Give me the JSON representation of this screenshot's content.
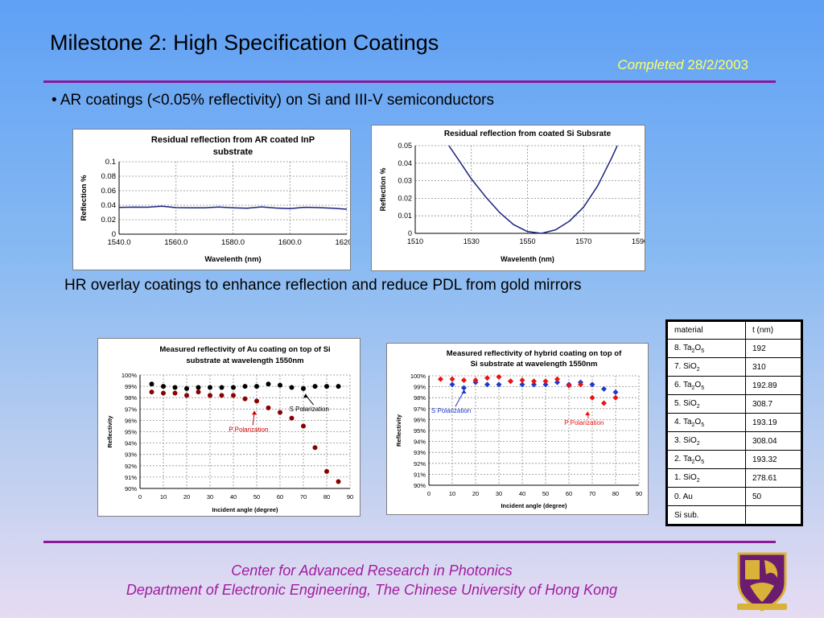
{
  "slide": {
    "title": "Milestone 2: High Specification Coatings",
    "status_word": "Completed",
    "status_date": "28/2/2003",
    "bullet1": "• AR coatings (<0.05% reflectivity) on Si and III-V semiconductors",
    "caption2": "HR overlay coatings to enhance reflection and reduce PDL from gold mirrors",
    "footer_line1": "Center for Advanced Research in Photonics",
    "footer_line2": "Department of Electronic Engineering, The Chinese University of Hong Kong"
  },
  "table": {
    "headers": [
      "material",
      "t (nm)"
    ],
    "rows": [
      {
        "base": "8. Ta",
        "sub": "2",
        "mid": "O",
        "sub2": "5",
        "t": "192"
      },
      {
        "base": "7. SiO",
        "sub": "2",
        "mid": "",
        "sub2": "",
        "t": "310"
      },
      {
        "base": "6. Ta",
        "sub": "2",
        "mid": "O",
        "sub2": "5",
        "t": "192.89"
      },
      {
        "base": "5. SiO",
        "sub": "2",
        "mid": "",
        "sub2": "",
        "t": "308.7"
      },
      {
        "base": "4. Ta",
        "sub": "2",
        "mid": "O",
        "sub2": "5",
        "t": "193.19"
      },
      {
        "base": "3. SiO",
        "sub": "2",
        "mid": "",
        "sub2": "",
        "t": "308.04"
      },
      {
        "base": "2. Ta",
        "sub": "2",
        "mid": "O",
        "sub2": "5",
        "t": "193.32"
      },
      {
        "base": "1. SiO",
        "sub": "2",
        "mid": "",
        "sub2": "",
        "t": "278.61"
      },
      {
        "base": "0. Au",
        "sub": "",
        "mid": "",
        "sub2": "",
        "t": "50"
      },
      {
        "base": "Si sub.",
        "sub": "",
        "mid": "",
        "sub2": "",
        "t": ""
      }
    ]
  },
  "chart_data": [
    {
      "type": "line",
      "title": "Residual reflection from AR coated InP substrate",
      "title_lines": [
        "Residual reflection from AR coated InP",
        "substrate"
      ],
      "xlabel": "Wavelenth (nm)",
      "ylabel": "Reflection %",
      "xlim": [
        1540,
        1620
      ],
      "ylim": [
        0,
        0.1
      ],
      "xticks": [
        "1540.0",
        "1560.0",
        "1580.0",
        "1600.0",
        "1620.0"
      ],
      "yticks": [
        "0",
        "0.02",
        "0.04",
        "0.06",
        "0.08",
        "0.1"
      ],
      "grid": true,
      "series": [
        {
          "color": "#1a237e",
          "x": [
            1540,
            1545,
            1550,
            1555,
            1560,
            1565,
            1570,
            1575,
            1580,
            1585,
            1590,
            1595,
            1600,
            1605,
            1610,
            1615,
            1620
          ],
          "y": [
            0.037,
            0.038,
            0.037,
            0.038,
            0.037,
            0.037,
            0.036,
            0.037,
            0.037,
            0.036,
            0.037,
            0.036,
            0.036,
            0.037,
            0.036,
            0.036,
            0.035
          ]
        }
      ]
    },
    {
      "type": "line",
      "title": "Residual reflection from coated Si Subsrate",
      "title_lines": [
        "Residual reflection from coated Si Subsrate"
      ],
      "xlabel": "Wavelenth (nm)",
      "ylabel": "Reflection %",
      "xlim": [
        1510,
        1590
      ],
      "ylim": [
        0,
        0.05
      ],
      "xticks": [
        "1510",
        "1530",
        "1550",
        "1570",
        "1590"
      ],
      "yticks": [
        "0",
        "0.01",
        "0.02",
        "0.03",
        "0.04",
        "0.05"
      ],
      "grid": true,
      "series": [
        {
          "color": "#1a237e",
          "x": [
            1522,
            1525,
            1530,
            1535,
            1540,
            1545,
            1550,
            1555,
            1560,
            1565,
            1570,
            1575,
            1580,
            1582
          ],
          "y": [
            0.05,
            0.043,
            0.031,
            0.021,
            0.012,
            0.005,
            0.001,
            0.0,
            0.002,
            0.007,
            0.015,
            0.027,
            0.043,
            0.05
          ]
        }
      ]
    },
    {
      "type": "scatter",
      "title": "Measured reflectivity of Au coating on top of Si substrate at wavelength 1550nm",
      "title_lines": [
        "Measured reflectivity of Au coating on top of Si",
        "substrate at wavelength 1550nm"
      ],
      "xlabel": "Incident angle (degree)",
      "ylabel": "Reflectivity",
      "xlim": [
        0,
        90
      ],
      "ylim": [
        90,
        100
      ],
      "xticks": [
        "0",
        "10",
        "20",
        "30",
        "40",
        "50",
        "60",
        "70",
        "80",
        "90"
      ],
      "yticks": [
        "90%",
        "91%",
        "92%",
        "93%",
        "94%",
        "95%",
        "96%",
        "97%",
        "98%",
        "99%",
        "100%"
      ],
      "grid": true,
      "series": [
        {
          "name": "S Polarization",
          "marker": "circle",
          "color": "#000000",
          "x": [
            5,
            10,
            15,
            20,
            25,
            30,
            35,
            40,
            45,
            50,
            55,
            60,
            65,
            70,
            75,
            80,
            85
          ],
          "y": [
            99.2,
            99.0,
            98.9,
            98.8,
            98.9,
            98.9,
            98.9,
            98.9,
            99.0,
            99.0,
            99.2,
            99.1,
            98.9,
            98.8,
            99.0,
            99.0,
            99.0
          ]
        },
        {
          "name": "P Polarization",
          "marker": "circle",
          "color": "#8b0000",
          "x": [
            5,
            10,
            15,
            20,
            25,
            30,
            35,
            40,
            45,
            50,
            55,
            60,
            65,
            70,
            75,
            80,
            85
          ],
          "y": [
            98.5,
            98.4,
            98.4,
            98.2,
            98.5,
            98.2,
            98.2,
            98.2,
            97.9,
            97.7,
            97.1,
            96.7,
            96.2,
            95.5,
            93.6,
            91.5,
            90.6
          ]
        }
      ],
      "annotations": [
        {
          "text": "S Polarization",
          "color": "#000000",
          "tx": 64,
          "ty": 96.8,
          "ax": 71,
          "ay": 98.5
        },
        {
          "text": "P Polarization",
          "color": "#cc0000",
          "tx": 38,
          "ty": 95.0,
          "ax": 49,
          "ay": 97.0
        }
      ]
    },
    {
      "type": "scatter",
      "title": "Measured reflectivity of hybrid coating on top of Si substrate at wavelength 1550nm",
      "title_lines": [
        "Measured reflectivity of hybrid coating on top of",
        "Si substrate at wavelength 1550nm"
      ],
      "xlabel": "Incident angle (degree)",
      "ylabel": "Reflectivity",
      "xlim": [
        0,
        90
      ],
      "ylim": [
        90,
        100
      ],
      "xticks": [
        "0",
        "10",
        "20",
        "30",
        "40",
        "50",
        "60",
        "70",
        "80",
        "90"
      ],
      "yticks": [
        "90%",
        "91%",
        "92%",
        "93%",
        "94%",
        "95%",
        "96%",
        "97%",
        "98%",
        "99%",
        "100%"
      ],
      "grid": true,
      "series": [
        {
          "name": "S Polarization",
          "marker": "diamond",
          "color": "#1a3acc",
          "x": [
            10,
            15,
            20,
            25,
            30,
            35,
            40,
            45,
            50,
            55,
            60,
            65,
            70,
            75,
            80
          ],
          "y": [
            99.2,
            98.9,
            99.4,
            99.2,
            99.2,
            99.5,
            99.2,
            99.2,
            99.2,
            99.4,
            99.2,
            99.4,
            99.2,
            98.8,
            98.5
          ]
        },
        {
          "name": "P Polarization",
          "marker": "diamond",
          "color": "#ee1111",
          "x": [
            5,
            10,
            15,
            20,
            25,
            30,
            35,
            40,
            45,
            50,
            55,
            60,
            65,
            70,
            75,
            80
          ],
          "y": [
            99.7,
            99.7,
            99.6,
            99.6,
            99.8,
            99.9,
            99.5,
            99.6,
            99.5,
            99.5,
            99.7,
            99.1,
            99.2,
            98.0,
            97.5,
            98.0
          ]
        }
      ],
      "annotations": [
        {
          "text": "S Polarization",
          "color": "#1a3acc",
          "tx": 1,
          "ty": 96.6,
          "ax": 15,
          "ay": 98.9
        },
        {
          "text": "P Polarization",
          "color": "#ee1111",
          "tx": 58,
          "ty": 95.5,
          "ax": 68,
          "ay": 96.9
        }
      ]
    }
  ]
}
